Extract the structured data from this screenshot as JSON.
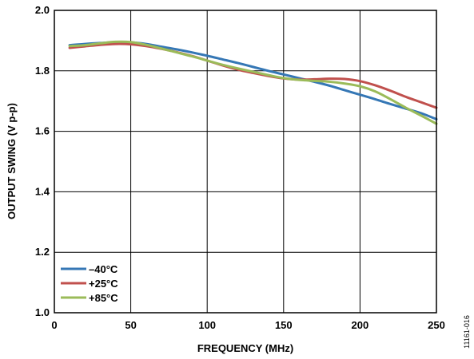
{
  "chart_data": {
    "type": "line",
    "xlabel": "FREQUENCY (MHz)",
    "ylabel": "OUTPUT SWING (V p-p)",
    "xlim": [
      0,
      250
    ],
    "ylim": [
      1.0,
      2.0
    ],
    "x_ticks": [
      0,
      50,
      100,
      150,
      200,
      250
    ],
    "y_ticks": [
      1.0,
      1.2,
      1.4,
      1.6,
      1.8,
      2.0
    ],
    "x_tick_labels": [
      "0",
      "50",
      "100",
      "150",
      "200",
      "250"
    ],
    "y_tick_labels": [
      "1.0",
      "1.2",
      "1.4",
      "1.6",
      "1.8",
      "2.0"
    ],
    "grid": true,
    "legend_position": "bottom-left",
    "series": [
      {
        "name": "–40°C",
        "color": "#3577b5",
        "x": [
          10,
          20,
          30,
          40,
          50,
          60,
          70,
          80,
          90,
          100,
          110,
          120,
          130,
          140,
          150,
          160,
          170,
          180,
          190,
          200,
          210,
          220,
          230,
          240,
          250
        ],
        "y": [
          1.885,
          1.889,
          1.892,
          1.894,
          1.894,
          1.889,
          1.88,
          1.871,
          1.861,
          1.85,
          1.838,
          1.826,
          1.813,
          1.8,
          1.788,
          1.776,
          1.764,
          1.751,
          1.736,
          1.721,
          1.706,
          1.69,
          1.675,
          1.66,
          1.64
        ]
      },
      {
        "name": "+25°C",
        "color": "#c0504d",
        "x": [
          10,
          20,
          30,
          40,
          50,
          60,
          70,
          80,
          90,
          100,
          110,
          120,
          130,
          140,
          150,
          160,
          170,
          180,
          190,
          200,
          210,
          220,
          230,
          240,
          250
        ],
        "y": [
          1.876,
          1.881,
          1.886,
          1.889,
          1.888,
          1.882,
          1.873,
          1.862,
          1.849,
          1.834,
          1.818,
          1.804,
          1.793,
          1.783,
          1.775,
          1.771,
          1.772,
          1.774,
          1.773,
          1.766,
          1.752,
          1.734,
          1.714,
          1.696,
          1.678
        ]
      },
      {
        "name": "+85°C",
        "color": "#9bbb59",
        "x": [
          10,
          20,
          30,
          40,
          50,
          60,
          70,
          80,
          90,
          100,
          110,
          120,
          130,
          140,
          150,
          160,
          170,
          180,
          190,
          200,
          210,
          220,
          230,
          240,
          250
        ],
        "y": [
          1.882,
          1.885,
          1.891,
          1.896,
          1.895,
          1.886,
          1.874,
          1.861,
          1.848,
          1.834,
          1.82,
          1.808,
          1.797,
          1.786,
          1.776,
          1.77,
          1.767,
          1.764,
          1.758,
          1.749,
          1.732,
          1.706,
          1.678,
          1.652,
          1.625
        ]
      }
    ]
  },
  "figure_id": "11161-016"
}
